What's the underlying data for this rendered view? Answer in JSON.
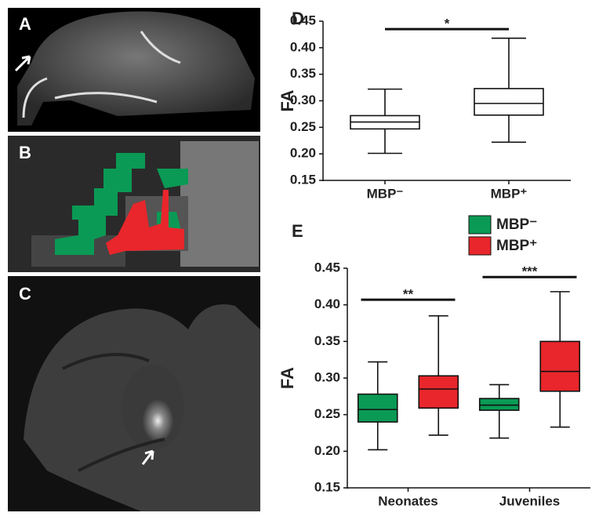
{
  "panels": {
    "labels": [
      "A",
      "B",
      "C"
    ]
  },
  "chart_data": [
    {
      "type": "box",
      "panel": "D",
      "ylabel": "FA",
      "categories": [
        "MBP⁻",
        "MBP⁺"
      ],
      "color": "#ffffff",
      "whislo": [
        0.201,
        0.222
      ],
      "q1": [
        0.247,
        0.273
      ],
      "median": [
        0.26,
        0.295
      ],
      "q3": [
        0.272,
        0.323
      ],
      "whishi": [
        0.322,
        0.418
      ],
      "ylim": [
        0.15,
        0.45
      ],
      "yticks": [
        {
          "value": 0.15,
          "label": "0.15"
        },
        {
          "value": 0.2,
          "label": "0.20"
        },
        {
          "value": 0.25,
          "label": "0.25"
        },
        {
          "value": 0.3,
          "label": "0.30"
        },
        {
          "value": 0.35,
          "label": "0.35"
        },
        {
          "value": 0.4,
          "label": "0.40"
        },
        {
          "value": 0.45,
          "label": "0.45"
        }
      ],
      "annotations": [
        {
          "text": "*",
          "value": 0.435
        }
      ]
    },
    {
      "type": "box",
      "panel": "E",
      "ylabel": "FA",
      "categories": [
        "Neonates",
        "Juveniles"
      ],
      "legend": "top-right",
      "series": [
        {
          "name": "MBP⁻",
          "color": "#0a9a55",
          "whislo": [
            0.202,
            0.218
          ],
          "q1": [
            0.24,
            0.256
          ],
          "median": [
            0.257,
            0.263
          ],
          "q3": [
            0.278,
            0.272
          ],
          "whishi": [
            0.322,
            0.291
          ]
        },
        {
          "name": "MBP⁺",
          "color": "#e8262b",
          "whislo": [
            0.222,
            0.233
          ],
          "q1": [
            0.259,
            0.282
          ],
          "median": [
            0.285,
            0.309
          ],
          "q3": [
            0.303,
            0.35
          ],
          "whishi": [
            0.385,
            0.418
          ]
        }
      ],
      "ylim": [
        0.15,
        0.45
      ],
      "yticks": [
        {
          "value": 0.15,
          "label": "0.15"
        },
        {
          "value": 0.2,
          "label": "0.20"
        },
        {
          "value": 0.25,
          "label": "0.25"
        },
        {
          "value": 0.3,
          "label": "0.30"
        },
        {
          "value": 0.35,
          "label": "0.35"
        },
        {
          "value": 0.4,
          "label": "0.40"
        },
        {
          "value": 0.45,
          "label": "0.45"
        }
      ],
      "annotations": [
        {
          "text": "**",
          "value": 0.407
        },
        {
          "text": "***",
          "value": 0.438
        }
      ]
    }
  ]
}
